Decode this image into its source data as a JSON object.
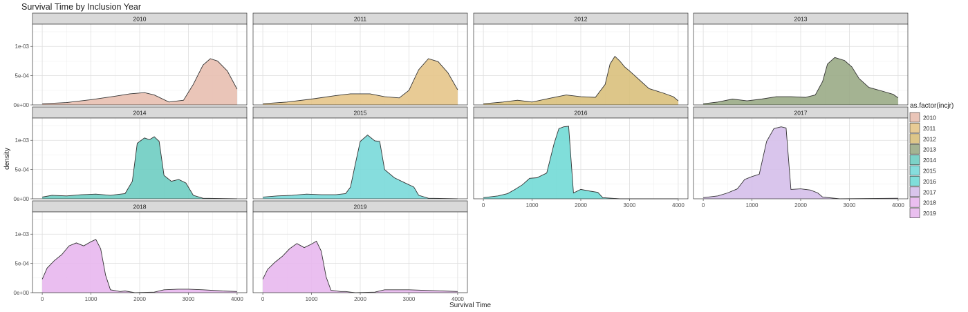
{
  "chart_data": {
    "type": "area",
    "title": "Survival Time by Inclusion Year",
    "xlabel": "Survival Time",
    "ylabel": "density",
    "xlim": [
      -200,
      4200
    ],
    "ylim": [
      0,
      0.00138
    ],
    "x_ticks": [
      0,
      1000,
      2000,
      3000,
      4000
    ],
    "x_tick_labels": [
      "0",
      "1000",
      "2000",
      "3000",
      "4000"
    ],
    "y_ticks": [
      0,
      0.0005,
      0.001
    ],
    "y_tick_labels": [
      "0e+00",
      "5e-04",
      "1e-03"
    ],
    "grid": true,
    "facet_layout": "4 columns, 3 rows, fixed scales",
    "legend": {
      "title": "as.factor(incjr)",
      "position": "right",
      "entries": [
        "2010",
        "2011",
        "2012",
        "2013",
        "2014",
        "2015",
        "2016",
        "2017",
        "2018",
        "2019"
      ]
    },
    "panels": [
      {
        "label": "2010",
        "color": "#e8bfb0",
        "x_range": [
          0,
          4000
        ],
        "points": [
          [
            0,
            2e-05
          ],
          [
            500,
            4e-05
          ],
          [
            1000,
            9e-05
          ],
          [
            1500,
            0.00015
          ],
          [
            1800,
            0.00019
          ],
          [
            2100,
            0.00021
          ],
          [
            2300,
            0.00017
          ],
          [
            2600,
            5e-05
          ],
          [
            2900,
            8e-05
          ],
          [
            3100,
            0.00035
          ],
          [
            3300,
            0.00068
          ],
          [
            3450,
            0.00079
          ],
          [
            3600,
            0.00075
          ],
          [
            3800,
            0.00058
          ],
          [
            4000,
            0.00027
          ]
        ]
      },
      {
        "label": "2011",
        "color": "#e6c58a",
        "x_range": [
          0,
          4000
        ],
        "points": [
          [
            0,
            2e-05
          ],
          [
            500,
            5e-05
          ],
          [
            1000,
            0.0001
          ],
          [
            1500,
            0.00016
          ],
          [
            1800,
            0.00019
          ],
          [
            2200,
            0.00019
          ],
          [
            2500,
            0.00014
          ],
          [
            2800,
            0.00012
          ],
          [
            3000,
            0.00025
          ],
          [
            3200,
            0.0006
          ],
          [
            3400,
            0.00079
          ],
          [
            3600,
            0.00074
          ],
          [
            3800,
            0.00055
          ],
          [
            4000,
            0.00026
          ]
        ]
      },
      {
        "label": "2012",
        "color": "#d9c07c",
        "x_range": [
          0,
          4000
        ],
        "points": [
          [
            0,
            2e-05
          ],
          [
            400,
            5e-05
          ],
          [
            700,
            8e-05
          ],
          [
            1000,
            5e-05
          ],
          [
            1400,
            0.00012
          ],
          [
            1700,
            0.00017
          ],
          [
            2000,
            0.00014
          ],
          [
            2300,
            0.00013
          ],
          [
            2500,
            0.00035
          ],
          [
            2600,
            0.0007
          ],
          [
            2700,
            0.00083
          ],
          [
            2800,
            0.00075
          ],
          [
            2900,
            0.00065
          ],
          [
            3000,
            0.00058
          ],
          [
            3200,
            0.00043
          ],
          [
            3400,
            0.00028
          ],
          [
            3700,
            0.0002
          ],
          [
            3900,
            0.00014
          ],
          [
            4000,
            7e-05
          ]
        ]
      },
      {
        "label": "2013",
        "color": "#9aab86",
        "x_range": [
          0,
          4000
        ],
        "points": [
          [
            0,
            2e-05
          ],
          [
            300,
            5e-05
          ],
          [
            600,
            0.0001
          ],
          [
            900,
            7e-05
          ],
          [
            1200,
            0.0001
          ],
          [
            1500,
            0.00014
          ],
          [
            1800,
            0.00014
          ],
          [
            2100,
            0.00013
          ],
          [
            2300,
            0.00017
          ],
          [
            2450,
            0.0004
          ],
          [
            2550,
            0.0007
          ],
          [
            2700,
            0.00081
          ],
          [
            2900,
            0.00076
          ],
          [
            3050,
            0.00065
          ],
          [
            3200,
            0.00045
          ],
          [
            3400,
            0.0003
          ],
          [
            3700,
            0.00023
          ],
          [
            3900,
            0.00018
          ],
          [
            4000,
            0.00012
          ]
        ]
      },
      {
        "label": "2014",
        "color": "#6ecdc2",
        "x_range": [
          0,
          4000
        ],
        "points": [
          [
            0,
            3e-05
          ],
          [
            200,
            6e-05
          ],
          [
            500,
            5e-05
          ],
          [
            800,
            7e-05
          ],
          [
            1100,
            8e-05
          ],
          [
            1400,
            6e-05
          ],
          [
            1700,
            9e-05
          ],
          [
            1850,
            0.0003
          ],
          [
            1950,
            0.00095
          ],
          [
            2100,
            0.00104
          ],
          [
            2200,
            0.00101
          ],
          [
            2300,
            0.00106
          ],
          [
            2400,
            0.00098
          ],
          [
            2500,
            0.0004
          ],
          [
            2650,
            0.0003
          ],
          [
            2800,
            0.00033
          ],
          [
            2950,
            0.00027
          ],
          [
            3100,
            6e-05
          ],
          [
            3300,
            1e-05
          ],
          [
            4000,
            0.0
          ]
        ]
      },
      {
        "label": "2015",
        "color": "#79d9d9",
        "x_range": [
          0,
          4000
        ],
        "points": [
          [
            0,
            3e-05
          ],
          [
            300,
            5e-05
          ],
          [
            600,
            6e-05
          ],
          [
            900,
            8e-05
          ],
          [
            1200,
            7e-05
          ],
          [
            1500,
            7e-05
          ],
          [
            1700,
            9e-05
          ],
          [
            1800,
            0.0002
          ],
          [
            1900,
            0.0006
          ],
          [
            2000,
            0.00098
          ],
          [
            2150,
            0.00109
          ],
          [
            2300,
            0.00099
          ],
          [
            2400,
            0.00098
          ],
          [
            2500,
            0.0005
          ],
          [
            2700,
            0.00036
          ],
          [
            2900,
            0.00028
          ],
          [
            3100,
            0.0002
          ],
          [
            3200,
            6e-05
          ],
          [
            3400,
            1e-05
          ],
          [
            4000,
            0.0
          ]
        ]
      },
      {
        "label": "2016",
        "color": "#72dad6",
        "x_range": [
          0,
          4000
        ],
        "points": [
          [
            0,
            2e-05
          ],
          [
            300,
            5e-05
          ],
          [
            500,
            9e-05
          ],
          [
            650,
            0.00016
          ],
          [
            800,
            0.00024
          ],
          [
            950,
            0.00035
          ],
          [
            1100,
            0.00036
          ],
          [
            1300,
            0.00044
          ],
          [
            1450,
            0.00094
          ],
          [
            1550,
            0.0012
          ],
          [
            1650,
            0.00123
          ],
          [
            1750,
            0.00124
          ],
          [
            1850,
            0.0001
          ],
          [
            2000,
            0.00016
          ],
          [
            2200,
            0.00013
          ],
          [
            2350,
            0.00011
          ],
          [
            2450,
            2e-05
          ],
          [
            2800,
            0.0
          ],
          [
            4000,
            0.0
          ]
        ]
      },
      {
        "label": "2017",
        "color": "#d5bfea",
        "x_range": [
          0,
          4000
        ],
        "points": [
          [
            0,
            2e-05
          ],
          [
            300,
            5e-05
          ],
          [
            500,
            0.0001
          ],
          [
            700,
            0.00017
          ],
          [
            850,
            0.00033
          ],
          [
            1000,
            0.00038
          ],
          [
            1150,
            0.00042
          ],
          [
            1300,
            0.00098
          ],
          [
            1450,
            0.0012
          ],
          [
            1600,
            0.00123
          ],
          [
            1700,
            0.00121
          ],
          [
            1800,
            0.00016
          ],
          [
            2000,
            0.00017
          ],
          [
            2200,
            0.00015
          ],
          [
            2350,
            0.0001
          ],
          [
            2450,
            3e-05
          ],
          [
            2800,
            0.0
          ],
          [
            4000,
            1e-05
          ]
        ]
      },
      {
        "label": "2018",
        "color": "#e8b7ee",
        "x_range": [
          0,
          4000
        ],
        "points": [
          [
            0,
            0.00023
          ],
          [
            100,
            0.00042
          ],
          [
            250,
            0.00055
          ],
          [
            400,
            0.00065
          ],
          [
            550,
            0.0008
          ],
          [
            700,
            0.00085
          ],
          [
            850,
            0.0008
          ],
          [
            1000,
            0.00087
          ],
          [
            1100,
            0.00091
          ],
          [
            1200,
            0.00075
          ],
          [
            1300,
            0.0003
          ],
          [
            1400,
            5e-05
          ],
          [
            1600,
            2e-05
          ],
          [
            1700,
            3e-05
          ],
          [
            1900,
            0.0
          ],
          [
            2300,
            1e-05
          ],
          [
            2500,
            5e-05
          ],
          [
            2800,
            6e-05
          ],
          [
            3000,
            6e-05
          ],
          [
            3300,
            5e-05
          ],
          [
            3700,
            3e-05
          ],
          [
            4000,
            2e-05
          ]
        ]
      },
      {
        "label": "2019",
        "color": "#e8b8ee",
        "x_range": [
          0,
          4000
        ],
        "points": [
          [
            0,
            0.00023
          ],
          [
            100,
            0.0004
          ],
          [
            250,
            0.00052
          ],
          [
            400,
            0.00062
          ],
          [
            550,
            0.00075
          ],
          [
            700,
            0.00084
          ],
          [
            850,
            0.00077
          ],
          [
            1000,
            0.00083
          ],
          [
            1100,
            0.00088
          ],
          [
            1200,
            0.00071
          ],
          [
            1300,
            0.00027
          ],
          [
            1400,
            4e-05
          ],
          [
            1600,
            2e-05
          ],
          [
            1700,
            2e-05
          ],
          [
            1900,
            0.0
          ],
          [
            2300,
            1e-05
          ],
          [
            2500,
            5e-05
          ],
          [
            2800,
            5e-05
          ],
          [
            3000,
            5e-05
          ],
          [
            3300,
            4e-05
          ],
          [
            3700,
            3e-05
          ],
          [
            4000,
            2e-05
          ]
        ]
      }
    ]
  }
}
